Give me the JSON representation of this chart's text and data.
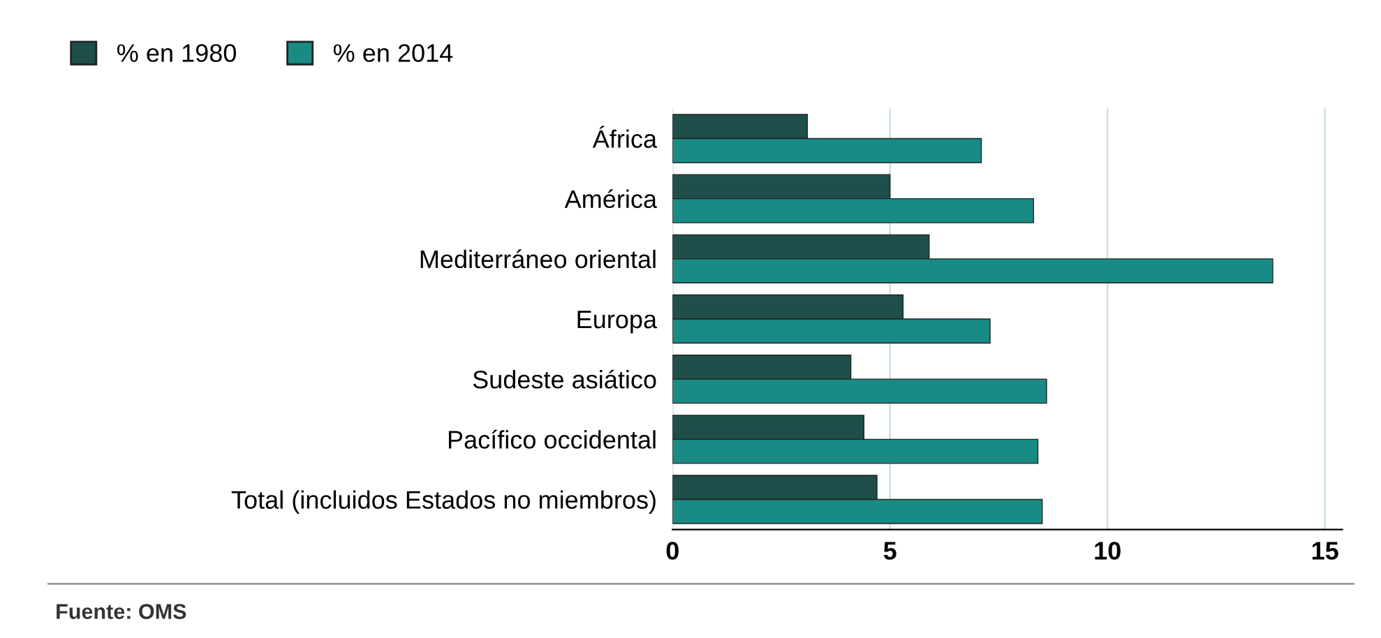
{
  "chart_data": {
    "type": "bar",
    "orientation": "horizontal",
    "categories": [
      "África",
      "América",
      "Mediterráneo oriental",
      "Europa",
      "Sudeste asiático",
      "Pacífico occidental",
      "Total (incluidos Estados no miembros)"
    ],
    "series": [
      {
        "name": "% en 1980",
        "color": "#1f4f4a",
        "values": [
          3.1,
          5.0,
          5.9,
          5.3,
          4.1,
          4.4,
          4.7
        ]
      },
      {
        "name": "% en 2014",
        "color": "#1a8a85",
        "values": [
          7.1,
          8.3,
          13.8,
          7.3,
          8.6,
          8.4,
          8.5
        ]
      }
    ],
    "xlim": [
      0,
      15.4
    ],
    "xticks": [
      0,
      5,
      10,
      15
    ],
    "grid": "x",
    "legend": "top left",
    "annotations": [
      "Fuente: OMS"
    ]
  }
}
